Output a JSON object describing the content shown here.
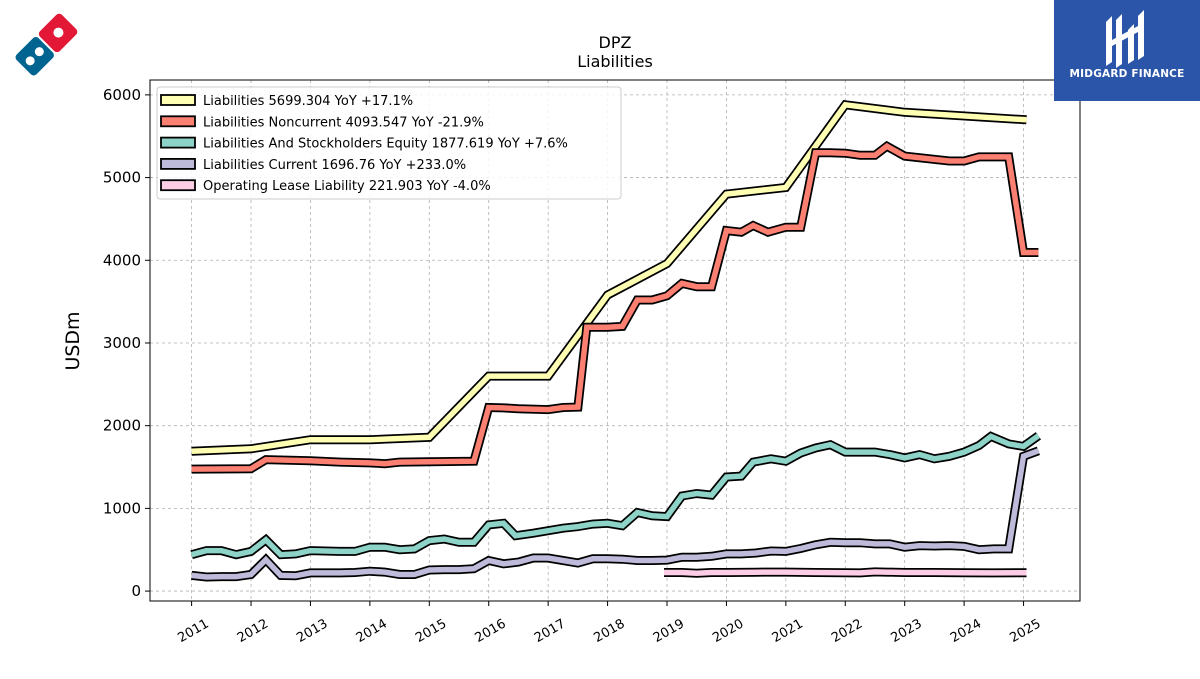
{
  "brand": {
    "right_name": "MIDGARD FINANCE"
  },
  "chart_data": {
    "type": "line",
    "title": "DPZ",
    "subtitle": "Liabilities",
    "ylabel": "USDm",
    "xlabel": "",
    "ylim": [
      -120,
      6180
    ],
    "xlim": [
      2010.3,
      2025.95
    ],
    "yticks": [
      0,
      1000,
      2000,
      3000,
      4000,
      5000,
      6000
    ],
    "xticks": [
      2011,
      2012,
      2013,
      2014,
      2015,
      2016,
      2017,
      2018,
      2019,
      2020,
      2021,
      2022,
      2023,
      2024,
      2025
    ],
    "xtick_labels": [
      "2011",
      "2012",
      "2013",
      "2014",
      "2015",
      "2016",
      "2017",
      "2018",
      "2019",
      "2020",
      "2021",
      "2022",
      "2023",
      "2024",
      "2025"
    ],
    "grid": true,
    "legend_position": "top-left",
    "series": [
      {
        "name": "Liabilities",
        "legend_label": "Liabilities  5699.304 YoY +17.1%",
        "color": "#ffffb3",
        "points": [
          [
            2011.0,
            1690
          ],
          [
            2012.0,
            1720
          ],
          [
            2013.0,
            1830
          ],
          [
            2014.0,
            1830
          ],
          [
            2015.0,
            1860
          ],
          [
            2016.0,
            2600
          ],
          [
            2017.0,
            2600
          ],
          [
            2018.0,
            3580
          ],
          [
            2019.0,
            3960
          ],
          [
            2020.0,
            4800
          ],
          [
            2021.0,
            4880
          ],
          [
            2022.0,
            5880
          ],
          [
            2023.0,
            5790
          ],
          [
            2025.05,
            5699.304
          ]
        ]
      },
      {
        "name": "Liabilities Noncurrent",
        "legend_label": "Liabilities Noncurrent  4093.547 YoY -21.9%",
        "color": "#fb8072",
        "points": [
          [
            2011.0,
            1475
          ],
          [
            2012.0,
            1480
          ],
          [
            2012.25,
            1590
          ],
          [
            2013.0,
            1575
          ],
          [
            2013.5,
            1560
          ],
          [
            2014.0,
            1550
          ],
          [
            2014.25,
            1540
          ],
          [
            2014.5,
            1560
          ],
          [
            2015.0,
            1565
          ],
          [
            2015.75,
            1570
          ],
          [
            2016.0,
            2220
          ],
          [
            2016.25,
            2215
          ],
          [
            2016.5,
            2205
          ],
          [
            2017.0,
            2195
          ],
          [
            2017.25,
            2220
          ],
          [
            2017.5,
            2225
          ],
          [
            2017.65,
            3190
          ],
          [
            2018.0,
            3190
          ],
          [
            2018.25,
            3200
          ],
          [
            2018.5,
            3520
          ],
          [
            2018.75,
            3520
          ],
          [
            2019.0,
            3570
          ],
          [
            2019.25,
            3720
          ],
          [
            2019.5,
            3680
          ],
          [
            2019.75,
            3680
          ],
          [
            2020.0,
            4360
          ],
          [
            2020.25,
            4340
          ],
          [
            2020.45,
            4420
          ],
          [
            2020.7,
            4340
          ],
          [
            2021.0,
            4400
          ],
          [
            2021.25,
            4400
          ],
          [
            2021.5,
            5300
          ],
          [
            2021.75,
            5300
          ],
          [
            2022.0,
            5295
          ],
          [
            2022.25,
            5270
          ],
          [
            2022.5,
            5270
          ],
          [
            2022.7,
            5380
          ],
          [
            2023.0,
            5260
          ],
          [
            2023.5,
            5220
          ],
          [
            2023.75,
            5200
          ],
          [
            2024.0,
            5200
          ],
          [
            2024.25,
            5250
          ],
          [
            2024.5,
            5250
          ],
          [
            2024.75,
            5250
          ],
          [
            2025.0,
            4093.547
          ],
          [
            2025.25,
            4093.547
          ]
        ]
      },
      {
        "name": "Liabilities And Stockholders Equity",
        "legend_label": "Liabilities And Stockholders Equity  1877.619 YoY +7.6%",
        "color": "#8dd3c7",
        "points": [
          [
            2011.0,
            440
          ],
          [
            2011.25,
            490
          ],
          [
            2011.5,
            490
          ],
          [
            2011.75,
            440
          ],
          [
            2012.0,
            480
          ],
          [
            2012.25,
            620
          ],
          [
            2012.5,
            440
          ],
          [
            2012.75,
            450
          ],
          [
            2013.0,
            490
          ],
          [
            2013.5,
            480
          ],
          [
            2013.75,
            480
          ],
          [
            2014.0,
            530
          ],
          [
            2014.25,
            530
          ],
          [
            2014.5,
            500
          ],
          [
            2014.75,
            510
          ],
          [
            2015.0,
            610
          ],
          [
            2015.25,
            630
          ],
          [
            2015.5,
            590
          ],
          [
            2015.75,
            590
          ],
          [
            2016.0,
            800
          ],
          [
            2016.25,
            820
          ],
          [
            2016.45,
            670
          ],
          [
            2016.75,
            700
          ],
          [
            2017.0,
            730
          ],
          [
            2017.25,
            760
          ],
          [
            2017.5,
            780
          ],
          [
            2017.75,
            810
          ],
          [
            2018.0,
            820
          ],
          [
            2018.25,
            790
          ],
          [
            2018.5,
            950
          ],
          [
            2018.75,
            910
          ],
          [
            2019.0,
            900
          ],
          [
            2019.25,
            1150
          ],
          [
            2019.5,
            1180
          ],
          [
            2019.75,
            1160
          ],
          [
            2020.0,
            1380
          ],
          [
            2020.25,
            1390
          ],
          [
            2020.45,
            1560
          ],
          [
            2020.75,
            1600
          ],
          [
            2021.0,
            1570
          ],
          [
            2021.25,
            1670
          ],
          [
            2021.5,
            1730
          ],
          [
            2021.75,
            1770
          ],
          [
            2022.0,
            1680
          ],
          [
            2022.25,
            1680
          ],
          [
            2022.5,
            1680
          ],
          [
            2022.75,
            1650
          ],
          [
            2023.0,
            1610
          ],
          [
            2023.25,
            1650
          ],
          [
            2023.5,
            1600
          ],
          [
            2023.75,
            1630
          ],
          [
            2024.0,
            1680
          ],
          [
            2024.25,
            1760
          ],
          [
            2024.45,
            1870
          ],
          [
            2024.75,
            1780
          ],
          [
            2025.0,
            1750
          ],
          [
            2025.25,
            1877.619
          ]
        ]
      },
      {
        "name": "Liabilities Current",
        "legend_label": "Liabilities Current  1696.76 YoY +233.0%",
        "color": "#bebada",
        "points": [
          [
            2011.0,
            190
          ],
          [
            2011.25,
            170
          ],
          [
            2011.5,
            175
          ],
          [
            2011.75,
            175
          ],
          [
            2012.0,
            200
          ],
          [
            2012.25,
            380
          ],
          [
            2012.5,
            190
          ],
          [
            2012.75,
            185
          ],
          [
            2013.0,
            220
          ],
          [
            2013.5,
            220
          ],
          [
            2013.75,
            225
          ],
          [
            2014.0,
            240
          ],
          [
            2014.25,
            230
          ],
          [
            2014.5,
            200
          ],
          [
            2014.75,
            200
          ],
          [
            2015.0,
            255
          ],
          [
            2015.25,
            260
          ],
          [
            2015.5,
            260
          ],
          [
            2015.75,
            270
          ],
          [
            2016.0,
            370
          ],
          [
            2016.25,
            330
          ],
          [
            2016.5,
            350
          ],
          [
            2016.75,
            400
          ],
          [
            2017.0,
            400
          ],
          [
            2017.25,
            370
          ],
          [
            2017.5,
            340
          ],
          [
            2017.75,
            390
          ],
          [
            2018.0,
            390
          ],
          [
            2018.25,
            385
          ],
          [
            2018.5,
            370
          ],
          [
            2018.75,
            370
          ],
          [
            2019.0,
            375
          ],
          [
            2019.25,
            410
          ],
          [
            2019.5,
            410
          ],
          [
            2019.75,
            420
          ],
          [
            2020.0,
            450
          ],
          [
            2020.25,
            450
          ],
          [
            2020.5,
            460
          ],
          [
            2020.75,
            485
          ],
          [
            2021.0,
            480
          ],
          [
            2021.25,
            515
          ],
          [
            2021.5,
            560
          ],
          [
            2021.75,
            590
          ],
          [
            2022.0,
            585
          ],
          [
            2022.25,
            585
          ],
          [
            2022.5,
            570
          ],
          [
            2022.75,
            570
          ],
          [
            2023.0,
            530
          ],
          [
            2023.25,
            550
          ],
          [
            2023.5,
            545
          ],
          [
            2023.75,
            550
          ],
          [
            2024.0,
            540
          ],
          [
            2024.25,
            500
          ],
          [
            2024.5,
            510
          ],
          [
            2024.75,
            510
          ],
          [
            2025.0,
            1630
          ],
          [
            2025.25,
            1696.76
          ]
        ]
      },
      {
        "name": "Operating Lease Liability",
        "legend_label": "Operating Lease Liability  221.903 YoY -4.0%",
        "color": "#fccde5",
        "points": [
          [
            2018.95,
            225
          ],
          [
            2019.25,
            225
          ],
          [
            2019.5,
            215
          ],
          [
            2019.75,
            225
          ],
          [
            2020.0,
            225
          ],
          [
            2020.5,
            228
          ],
          [
            2021.0,
            230
          ],
          [
            2021.5,
            225
          ],
          [
            2022.0,
            222
          ],
          [
            2022.25,
            220
          ],
          [
            2022.5,
            232
          ],
          [
            2023.0,
            225
          ],
          [
            2023.5,
            225
          ],
          [
            2024.0,
            222
          ],
          [
            2024.5,
            220
          ],
          [
            2025.05,
            221.903
          ]
        ]
      }
    ]
  }
}
